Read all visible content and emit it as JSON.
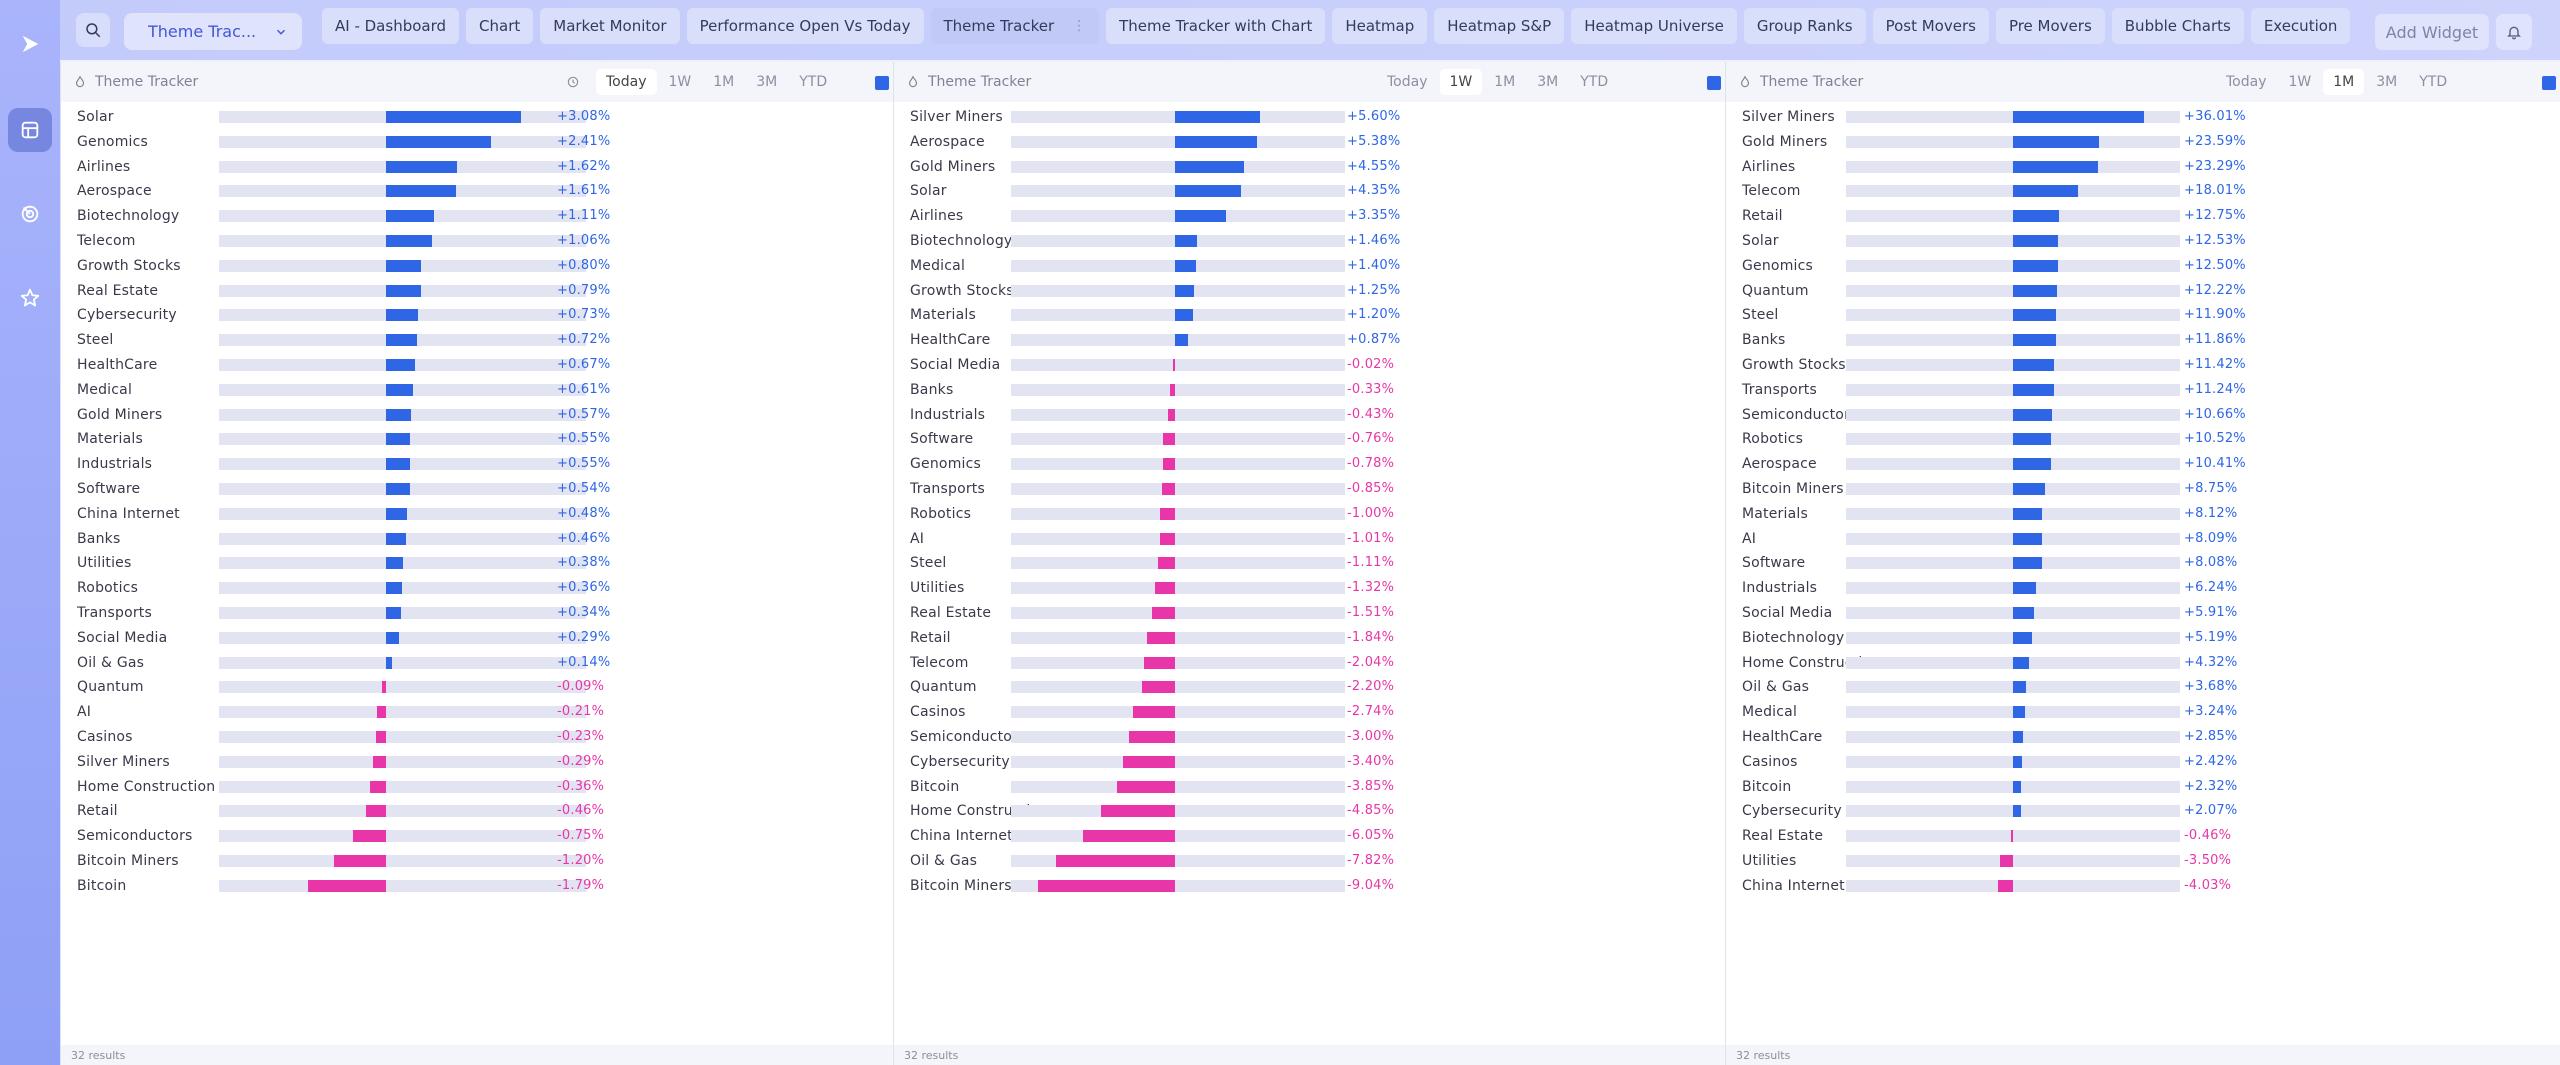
{
  "topbar": {
    "dropdown_label": "Theme Trac...",
    "tabs": [
      {
        "label": "AI - Dashboard",
        "active": false
      },
      {
        "label": "Chart",
        "active": false
      },
      {
        "label": "Market Monitor",
        "active": false
      },
      {
        "label": "Performance Open Vs Today",
        "active": false
      },
      {
        "label": "Theme Tracker",
        "active": true
      },
      {
        "label": "Theme Tracker with Chart",
        "active": false
      },
      {
        "label": "Heatmap",
        "active": false
      },
      {
        "label": "Heatmap S&P",
        "active": false
      },
      {
        "label": "Heatmap Universe",
        "active": false
      },
      {
        "label": "Group Ranks",
        "active": false
      },
      {
        "label": "Post Movers",
        "active": false
      },
      {
        "label": "Pre Movers",
        "active": false
      },
      {
        "label": "Bubble Charts",
        "active": false
      },
      {
        "label": "Execution",
        "active": false
      }
    ],
    "add_widget_label": "Add Widget"
  },
  "icons": {
    "logo": "play-logo-icon",
    "sidebar": [
      "dashboard-icon",
      "radar-icon",
      "star-icon"
    ],
    "search": "search-icon",
    "chevron": "chevron-down-icon",
    "bell": "bell-icon",
    "panel_title": "theme-flame-icon",
    "history": "history-clock-icon"
  },
  "colors": {
    "positive": "#2e66e6",
    "negative": "#e836a8",
    "accent": "#4357d6"
  },
  "panels": [
    {
      "title": "Theme Tracker",
      "periods": [
        "Today",
        "1W",
        "1M",
        "3M",
        "YTD"
      ],
      "active_period": "Today",
      "show_history": true,
      "footer": "32 results",
      "scale_max_pct": 4.2,
      "rows": [
        {
          "name": "Solar",
          "value": 3.08,
          "label": "+3.08%"
        },
        {
          "name": "Genomics",
          "value": 2.41,
          "label": "+2.41%"
        },
        {
          "name": "Airlines",
          "value": 1.62,
          "label": "+1.62%"
        },
        {
          "name": "Aerospace",
          "value": 1.61,
          "label": "+1.61%"
        },
        {
          "name": "Biotechnology",
          "value": 1.11,
          "label": "+1.11%"
        },
        {
          "name": "Telecom",
          "value": 1.06,
          "label": "+1.06%"
        },
        {
          "name": "Growth Stocks",
          "value": 0.8,
          "label": "+0.80%"
        },
        {
          "name": "Real Estate",
          "value": 0.79,
          "label": "+0.79%"
        },
        {
          "name": "Cybersecurity",
          "value": 0.73,
          "label": "+0.73%"
        },
        {
          "name": "Steel",
          "value": 0.72,
          "label": "+0.72%"
        },
        {
          "name": "HealthCare",
          "value": 0.67,
          "label": "+0.67%"
        },
        {
          "name": "Medical",
          "value": 0.61,
          "label": "+0.61%"
        },
        {
          "name": "Gold Miners",
          "value": 0.57,
          "label": "+0.57%"
        },
        {
          "name": "Materials",
          "value": 0.55,
          "label": "+0.55%"
        },
        {
          "name": "Industrials",
          "value": 0.55,
          "label": "+0.55%"
        },
        {
          "name": "Software",
          "value": 0.54,
          "label": "+0.54%"
        },
        {
          "name": "China Internet",
          "value": 0.48,
          "label": "+0.48%"
        },
        {
          "name": "Banks",
          "value": 0.46,
          "label": "+0.46%"
        },
        {
          "name": "Utilities",
          "value": 0.38,
          "label": "+0.38%"
        },
        {
          "name": "Robotics",
          "value": 0.36,
          "label": "+0.36%"
        },
        {
          "name": "Transports",
          "value": 0.34,
          "label": "+0.34%"
        },
        {
          "name": "Social Media",
          "value": 0.29,
          "label": "+0.29%"
        },
        {
          "name": "Oil & Gas",
          "value": 0.14,
          "label": "+0.14%"
        },
        {
          "name": "Quantum",
          "value": -0.09,
          "label": "-0.09%"
        },
        {
          "name": "AI",
          "value": -0.21,
          "label": "-0.21%"
        },
        {
          "name": "Casinos",
          "value": -0.23,
          "label": "-0.23%"
        },
        {
          "name": "Silver Miners",
          "value": -0.29,
          "label": "-0.29%"
        },
        {
          "name": "Home Construction",
          "value": -0.36,
          "label": "-0.36%"
        },
        {
          "name": "Retail",
          "value": -0.46,
          "label": "-0.46%"
        },
        {
          "name": "Semiconductors",
          "value": -0.75,
          "label": "-0.75%"
        },
        {
          "name": "Bitcoin Miners",
          "value": -1.2,
          "label": "-1.20%"
        },
        {
          "name": "Bitcoin",
          "value": -1.79,
          "label": "-1.79%"
        }
      ]
    },
    {
      "title": "Theme Tracker",
      "periods": [
        "Today",
        "1W",
        "1M",
        "3M",
        "YTD"
      ],
      "active_period": "1W",
      "show_history": false,
      "footer": "32 results",
      "scale_max_pct": 11.0,
      "rows": [
        {
          "name": "Silver Miners",
          "value": 5.6,
          "label": "+5.60%"
        },
        {
          "name": "Aerospace",
          "value": 5.38,
          "label": "+5.38%"
        },
        {
          "name": "Gold Miners",
          "value": 4.55,
          "label": "+4.55%"
        },
        {
          "name": "Solar",
          "value": 4.35,
          "label": "+4.35%"
        },
        {
          "name": "Airlines",
          "value": 3.35,
          "label": "+3.35%"
        },
        {
          "name": "Biotechnology",
          "value": 1.46,
          "label": "+1.46%"
        },
        {
          "name": "Medical",
          "value": 1.4,
          "label": "+1.40%"
        },
        {
          "name": "Growth Stocks",
          "value": 1.25,
          "label": "+1.25%"
        },
        {
          "name": "Materials",
          "value": 1.2,
          "label": "+1.20%"
        },
        {
          "name": "HealthCare",
          "value": 0.87,
          "label": "+0.87%"
        },
        {
          "name": "Social Media",
          "value": -0.02,
          "label": "-0.02%"
        },
        {
          "name": "Banks",
          "value": -0.33,
          "label": "-0.33%"
        },
        {
          "name": "Industrials",
          "value": -0.43,
          "label": "-0.43%"
        },
        {
          "name": "Software",
          "value": -0.76,
          "label": "-0.76%"
        },
        {
          "name": "Genomics",
          "value": -0.78,
          "label": "-0.78%"
        },
        {
          "name": "Transports",
          "value": -0.85,
          "label": "-0.85%"
        },
        {
          "name": "Robotics",
          "value": -1.0,
          "label": "-1.00%"
        },
        {
          "name": "AI",
          "value": -1.01,
          "label": "-1.01%"
        },
        {
          "name": "Steel",
          "value": -1.11,
          "label": "-1.11%"
        },
        {
          "name": "Utilities",
          "value": -1.32,
          "label": "-1.32%"
        },
        {
          "name": "Real Estate",
          "value": -1.51,
          "label": "-1.51%"
        },
        {
          "name": "Retail",
          "value": -1.84,
          "label": "-1.84%"
        },
        {
          "name": "Telecom",
          "value": -2.04,
          "label": "-2.04%"
        },
        {
          "name": "Quantum",
          "value": -2.2,
          "label": "-2.20%"
        },
        {
          "name": "Casinos",
          "value": -2.74,
          "label": "-2.74%"
        },
        {
          "name": "Semiconductors",
          "value": -3.0,
          "label": "-3.00%"
        },
        {
          "name": "Cybersecurity",
          "value": -3.4,
          "label": "-3.40%"
        },
        {
          "name": "Bitcoin",
          "value": -3.85,
          "label": "-3.85%"
        },
        {
          "name": "Home Construction",
          "value": -4.85,
          "label": "-4.85%"
        },
        {
          "name": "China Internet",
          "value": -6.05,
          "label": "-6.05%"
        },
        {
          "name": "Oil & Gas",
          "value": -7.82,
          "label": "-7.82%"
        },
        {
          "name": "Bitcoin Miners",
          "value": -9.04,
          "label": "-9.04%"
        }
      ]
    },
    {
      "title": "Theme Tracker",
      "periods": [
        "Today",
        "1W",
        "1M",
        "3M",
        "YTD"
      ],
      "active_period": "1M",
      "show_history": false,
      "footer": "32 results",
      "scale_max_pct": 46.0,
      "rows": [
        {
          "name": "Silver Miners",
          "value": 36.01,
          "label": "+36.01%"
        },
        {
          "name": "Gold Miners",
          "value": 23.59,
          "label": "+23.59%"
        },
        {
          "name": "Airlines",
          "value": 23.29,
          "label": "+23.29%"
        },
        {
          "name": "Telecom",
          "value": 18.01,
          "label": "+18.01%"
        },
        {
          "name": "Retail",
          "value": 12.75,
          "label": "+12.75%"
        },
        {
          "name": "Solar",
          "value": 12.53,
          "label": "+12.53%"
        },
        {
          "name": "Genomics",
          "value": 12.5,
          "label": "+12.50%"
        },
        {
          "name": "Quantum",
          "value": 12.22,
          "label": "+12.22%"
        },
        {
          "name": "Steel",
          "value": 11.9,
          "label": "+11.90%"
        },
        {
          "name": "Banks",
          "value": 11.86,
          "label": "+11.86%"
        },
        {
          "name": "Growth Stocks",
          "value": 11.42,
          "label": "+11.42%"
        },
        {
          "name": "Transports",
          "value": 11.24,
          "label": "+11.24%"
        },
        {
          "name": "Semiconductors",
          "value": 10.66,
          "label": "+10.66%"
        },
        {
          "name": "Robotics",
          "value": 10.52,
          "label": "+10.52%"
        },
        {
          "name": "Aerospace",
          "value": 10.41,
          "label": "+10.41%"
        },
        {
          "name": "Bitcoin Miners",
          "value": 8.75,
          "label": "+8.75%"
        },
        {
          "name": "Materials",
          "value": 8.12,
          "label": "+8.12%"
        },
        {
          "name": "AI",
          "value": 8.09,
          "label": "+8.09%"
        },
        {
          "name": "Software",
          "value": 8.08,
          "label": "+8.08%"
        },
        {
          "name": "Industrials",
          "value": 6.24,
          "label": "+6.24%"
        },
        {
          "name": "Social Media",
          "value": 5.91,
          "label": "+5.91%"
        },
        {
          "name": "Biotechnology",
          "value": 5.19,
          "label": "+5.19%"
        },
        {
          "name": "Home Construction",
          "value": 4.32,
          "label": "+4.32%"
        },
        {
          "name": "Oil & Gas",
          "value": 3.68,
          "label": "+3.68%"
        },
        {
          "name": "Medical",
          "value": 3.24,
          "label": "+3.24%"
        },
        {
          "name": "HealthCare",
          "value": 2.85,
          "label": "+2.85%"
        },
        {
          "name": "Casinos",
          "value": 2.42,
          "label": "+2.42%"
        },
        {
          "name": "Bitcoin",
          "value": 2.32,
          "label": "+2.32%"
        },
        {
          "name": "Cybersecurity",
          "value": 2.07,
          "label": "+2.07%"
        },
        {
          "name": "Real Estate",
          "value": -0.46,
          "label": "-0.46%"
        },
        {
          "name": "Utilities",
          "value": -3.5,
          "label": "-3.50%"
        },
        {
          "name": "China Internet",
          "value": -4.03,
          "label": "-4.03%"
        }
      ]
    }
  ]
}
